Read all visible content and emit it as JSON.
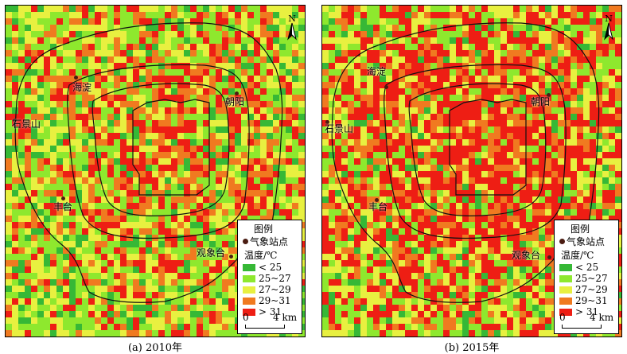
{
  "panels": [
    {
      "id": "a",
      "caption": "(a) 2010年",
      "palette_weights": [
        0.09,
        0.24,
        0.2,
        0.22,
        0.25
      ],
      "legend": {
        "title": "图例",
        "station_label": "气象站点",
        "unit_label": "温度/℃",
        "classes": [
          "< 25",
          "25~27",
          "27~29",
          "29~31",
          "> 31"
        ],
        "scale_start": "0",
        "scale_end": "4 km"
      },
      "places": [
        "海淀",
        "朝阳",
        "石景山",
        "丰台",
        "观象台"
      ]
    },
    {
      "id": "b",
      "caption": "(b) 2015年",
      "palette_weights": [
        0.05,
        0.15,
        0.15,
        0.2,
        0.45
      ],
      "legend": {
        "title": "图例",
        "station_label": "气象站点",
        "unit_label": "温度/℃",
        "classes": [
          "< 25",
          "25~27",
          "27~29",
          "29~31",
          "> 31"
        ],
        "scale_start": "0",
        "scale_end": "4 km"
      },
      "places": [
        "海淀",
        "朝阳",
        "石景山",
        "丰台",
        "观象台"
      ]
    }
  ],
  "north_label": "N",
  "class_colors": [
    "#36b836",
    "#8ee82e",
    "#e8f040",
    "#f07a20",
    "#ee1e14"
  ]
}
